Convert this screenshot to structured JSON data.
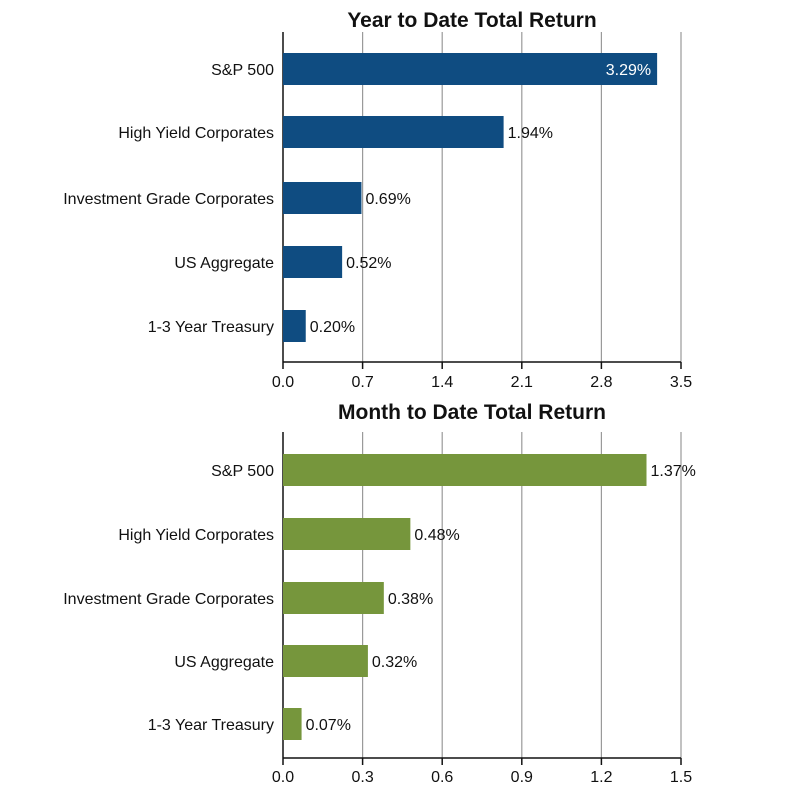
{
  "chart_data": [
    {
      "type": "bar",
      "orientation": "horizontal",
      "title": "Year to Date Total Return",
      "categories": [
        "S&P 500",
        "High Yield Corporates",
        "Investment Grade Corporates",
        "US Aggregate",
        "1-3 Year Treasury"
      ],
      "values": [
        3.29,
        1.94,
        0.69,
        0.52,
        0.2
      ],
      "data_labels": [
        "3.29%",
        "1.94%",
        "0.69%",
        "0.52%",
        "0.20%"
      ],
      "xticks": [
        "0.0",
        "0.7",
        "1.4",
        "2.1",
        "2.8",
        "3.5"
      ],
      "xlim": [
        0,
        3.5
      ],
      "grid": true,
      "color": "#0f4c81"
    },
    {
      "type": "bar",
      "orientation": "horizontal",
      "title": "Month to Date Total Return",
      "categories": [
        "S&P 500",
        "High Yield Corporates",
        "Investment Grade Corporates",
        "US Aggregate",
        "1-3 Year Treasury"
      ],
      "values": [
        1.37,
        0.48,
        0.38,
        0.32,
        0.07
      ],
      "data_labels": [
        "1.37%",
        "0.48%",
        "0.38%",
        "0.32%",
        "0.07%"
      ],
      "xticks": [
        "0.0",
        "0.3",
        "0.6",
        "0.9",
        "1.2",
        "1.5"
      ],
      "xlim": [
        0,
        1.5
      ],
      "grid": true,
      "color": "#76963c"
    }
  ]
}
